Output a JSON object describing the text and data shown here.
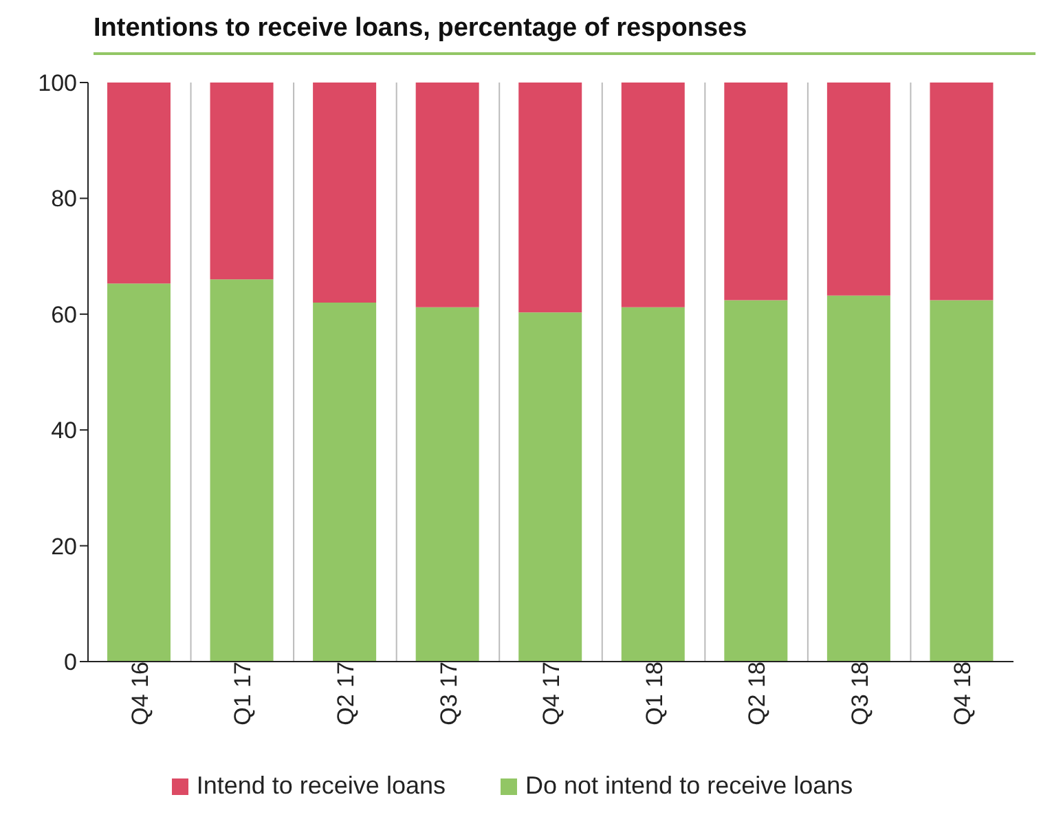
{
  "chart_data": {
    "type": "bar",
    "title": "Intentions to receive loans, percentage of responses",
    "categories": [
      "Q4 16",
      "Q1 17",
      "Q2 17",
      "Q3 17",
      "Q4 17",
      "Q1 18",
      "Q2 18",
      "Q3 18",
      "Q4 18"
    ],
    "stacked": true,
    "series": [
      {
        "name": "Do not intend to receive loans",
        "color": "#92c665",
        "values": [
          65.3,
          66,
          62,
          61.2,
          60.3,
          61.2,
          62.4,
          63.2,
          62.4
        ]
      },
      {
        "name": "Intend to receive loans",
        "color": "#dc4a64",
        "values": [
          34.7,
          34,
          38,
          38.8,
          39.7,
          38.8,
          37.6,
          36.8,
          37.6
        ]
      }
    ],
    "ylim": [
      0,
      100
    ],
    "yticks": [
      0,
      20,
      40,
      60,
      80,
      100
    ],
    "grid": "x",
    "legend": "bottom"
  }
}
